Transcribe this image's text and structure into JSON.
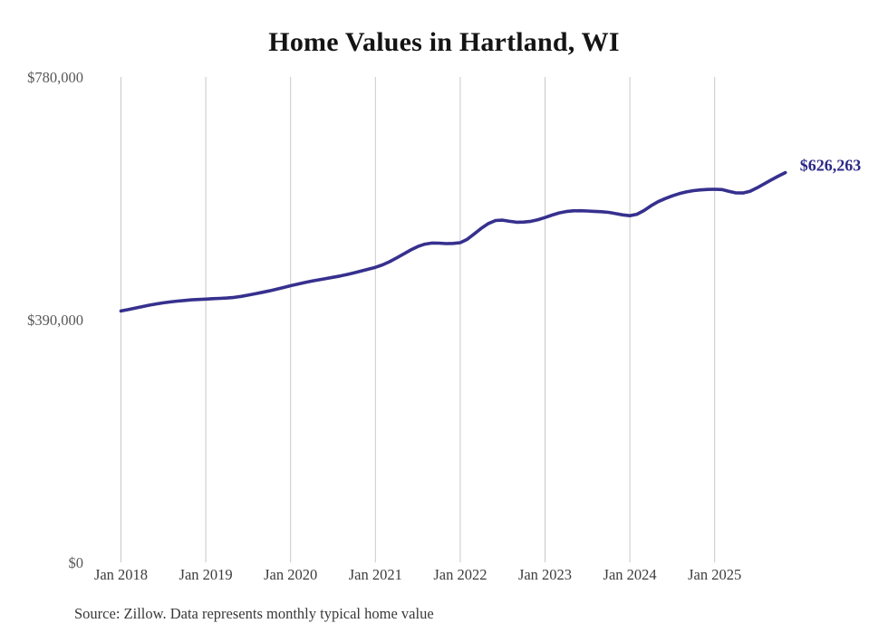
{
  "title": "Home Values in Hartland, WI",
  "source_note": "Source: Zillow. Data represents monthly typical home value",
  "colors": {
    "background": "#ffffff",
    "line": "#36308e",
    "end_label": "#2d2a88",
    "grid": "#c9c9c9",
    "title": "#141414",
    "y_tick": "#58585a",
    "x_tick": "#3d3d3d",
    "source": "#383838"
  },
  "chart_data": {
    "type": "line",
    "title": "Home Values in Hartland, WI",
    "xlabel": "",
    "ylabel": "",
    "ylim": [
      0,
      780000
    ],
    "grid": "vertical-only",
    "legend": "none",
    "y_ticks": [
      {
        "value": 0,
        "label": "$0"
      },
      {
        "value": 390000,
        "label": "$390,000"
      },
      {
        "value": 780000,
        "label": "$780,000"
      }
    ],
    "x_ticks": [
      "Jan 2018",
      "Jan 2019",
      "Jan 2020",
      "Jan 2021",
      "Jan 2022",
      "Jan 2023",
      "Jan 2024",
      "Jan 2025"
    ],
    "series": [
      {
        "name": "Monthly typical home value",
        "start_month": "2018-01",
        "end_month": "2025-11",
        "frequency": "monthly",
        "end_annotation": "$626,263",
        "values": [
          404000,
          406200,
          408600,
          411000,
          413300,
          415300,
          417000,
          418500,
          419800,
          420900,
          421800,
          422500,
          423100,
          423700,
          424200,
          424800,
          425800,
          427400,
          429400,
          431600,
          433900,
          436300,
          438900,
          441700,
          444500,
          447100,
          449600,
          452000,
          454100,
          456100,
          458100,
          460200,
          462600,
          465300,
          468200,
          471100,
          474100,
          478100,
          483200,
          489200,
          495700,
          502100,
          507600,
          511400,
          513100,
          512900,
          512300,
          512600,
          513700,
          519200,
          528000,
          537000,
          544600,
          549400,
          549900,
          548000,
          546600,
          546900,
          548100,
          550700,
          554100,
          558100,
          561500,
          563800,
          564900,
          565000,
          564600,
          564100,
          563500,
          562400,
          560400,
          558400,
          557100,
          559400,
          565400,
          573000,
          579600,
          584600,
          589000,
          592500,
          595400,
          597400,
          598600,
          599200,
          599600,
          599100,
          596200,
          593700,
          593600,
          596400,
          601900,
          608100,
          614500,
          620600,
          626263
        ]
      }
    ]
  }
}
